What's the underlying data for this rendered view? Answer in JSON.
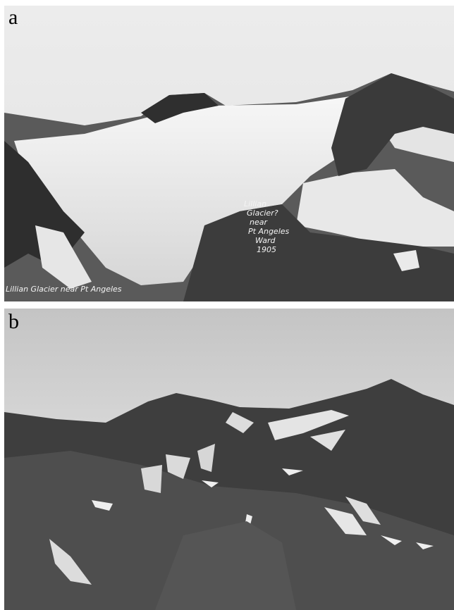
{
  "panels": [
    {
      "label": "a",
      "inscription": [
        "Lillian",
        "Glacier?",
        "near",
        "Pt Angeles",
        "Ward",
        "1905"
      ],
      "caption": "Lillian Glacier near Pt Angeles"
    },
    {
      "label": "b"
    }
  ]
}
